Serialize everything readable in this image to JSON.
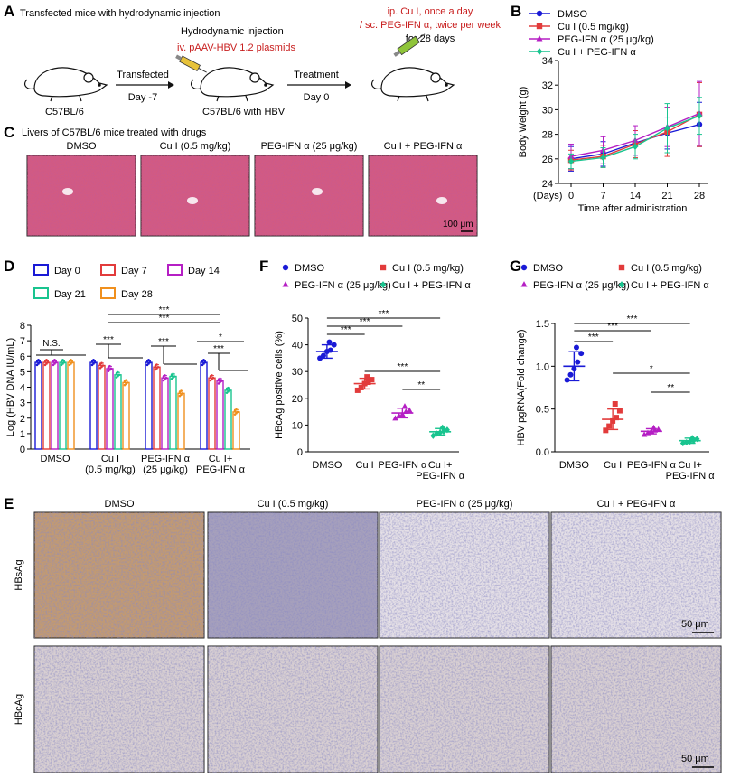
{
  "panels": {
    "A": {
      "letter": "A",
      "title": "Transfected mice with hydrodynamic injection",
      "hydro": "Hydrodynamic injection",
      "plasmid": "iv. pAAV-HBV 1.2 plasmids",
      "treat_line1": "ip. Cu I,  once a day",
      "treat_line2": "/ sc. PEG-IFN α, twice per week",
      "treat_line3": "for 28 days",
      "mouse1": "C57BL/6",
      "mouse2": "C57BL/6 with HBV",
      "arrow1_top": "Transfected",
      "arrow1_bottom": "Day -7",
      "arrow2_top": "Treatment",
      "arrow2_bottom": "Day 0"
    },
    "B": {
      "letter": "B"
    },
    "C": {
      "letter": "C",
      "title": "Livers of C57BL/6 mice treated with drugs",
      "labels": [
        "DMSO",
        "Cu I (0.5 mg/kg)",
        "PEG-IFN α (25 μg/kg)",
        "Cu I + PEG-IFN α"
      ],
      "scale": "100 μm"
    },
    "D": {
      "letter": "D"
    },
    "E": {
      "letter": "E",
      "labels": [
        "DMSO",
        "Cu I (0.5 mg/kg)",
        "PEG-IFN α (25 μg/kg)",
        "Cu I + PEG-IFN α"
      ],
      "rows": [
        "HBsAg",
        "HBcAg"
      ],
      "scale": "50 μm"
    },
    "F": {
      "letter": "F"
    },
    "G": {
      "letter": "G"
    }
  },
  "colors": {
    "dmso": "#1a1ad6",
    "cui": "#e23b3b",
    "peg": "#b51fc4",
    "combo": "#19c48f",
    "d0": "#1a1ad6",
    "d7": "#e23b3b",
    "d14": "#b51fc4",
    "d21": "#19c48f",
    "d28": "#f0901e",
    "he": "#d45a80",
    "ihc_brown": "#b7875a",
    "ihc_blue": "#cfcce0"
  },
  "chart_data": [
    {
      "id": "B",
      "type": "line",
      "ylabel": "Body Weight (g)",
      "xlabel": "Time after administration",
      "xunit": "(Days)",
      "x": [
        0,
        7,
        14,
        21,
        28
      ],
      "ylim": [
        24,
        34
      ],
      "yticks": [
        24,
        26,
        28,
        30,
        32,
        34
      ],
      "legend": "top-left",
      "series": [
        {
          "name": "DMSO",
          "color": "#1a1ad6",
          "marker": "circle",
          "values": [
            26.0,
            26.4,
            27.3,
            28.1,
            28.8
          ],
          "err": [
            1.0,
            1.0,
            1.0,
            1.3,
            1.8
          ]
        },
        {
          "name": "Cu I (0.5 mg/kg)",
          "color": "#e23b3b",
          "marker": "square",
          "values": [
            25.9,
            26.2,
            27.2,
            28.2,
            29.6
          ],
          "err": [
            0.8,
            0.9,
            1.1,
            2.0,
            2.6
          ]
        },
        {
          "name": "PEG-IFN α (25 μg/kg)",
          "color": "#b51fc4",
          "marker": "triangle",
          "values": [
            26.2,
            26.7,
            27.5,
            28.6,
            29.7
          ],
          "err": [
            1.0,
            1.1,
            1.2,
            1.6,
            2.6
          ]
        },
        {
          "name": "Cu I + PEG-IFN α",
          "color": "#19c48f",
          "marker": "diamond",
          "values": [
            25.8,
            26.1,
            27.0,
            28.5,
            29.5
          ],
          "err": [
            0.6,
            0.8,
            1.0,
            2.0,
            1.5
          ]
        }
      ]
    },
    {
      "id": "D",
      "type": "bar",
      "ylabel": "Log (HBV DNA IU/mL)",
      "ylim": [
        0,
        8
      ],
      "yticks": [
        0,
        1,
        2,
        3,
        4,
        5,
        6,
        7,
        8
      ],
      "categories": [
        "DMSO",
        "Cu I\n(0.5 mg/kg)",
        "PEG-IFN α\n(25 μg/kg)",
        "Cu I+\nPEG-IFN α"
      ],
      "series": [
        {
          "name": "Day 0",
          "color": "#1a1ad6",
          "values": [
            5.6,
            5.6,
            5.6,
            5.6
          ]
        },
        {
          "name": "Day 7",
          "color": "#e23b3b",
          "values": [
            5.6,
            5.4,
            5.3,
            4.6
          ]
        },
        {
          "name": "Day 14",
          "color": "#b51fc4",
          "values": [
            5.6,
            5.2,
            4.6,
            4.4
          ]
        },
        {
          "name": "Day 21",
          "color": "#19c48f",
          "values": [
            5.6,
            4.8,
            4.7,
            3.8
          ]
        },
        {
          "name": "Day 28",
          "color": "#f0901e",
          "values": [
            5.6,
            4.3,
            3.6,
            2.4
          ]
        }
      ],
      "annotations": [
        "N.S.",
        "***",
        "***",
        "***",
        "***",
        "*",
        "***",
        "***"
      ]
    },
    {
      "id": "F",
      "type": "scatter",
      "ylabel": "HBcAg positive cells (%)",
      "ylim": [
        0,
        50
      ],
      "yticks": [
        0,
        10,
        20,
        30,
        40,
        50
      ],
      "categories": [
        "DMSO",
        "Cu I",
        "PEG-IFN α",
        "Cu I+\nPEG-IFN α"
      ],
      "series": [
        {
          "name": "DMSO",
          "color": "#1a1ad6",
          "marker": "circle",
          "mean": 37.5,
          "sd": 2.5,
          "points": [
            35,
            36,
            37.5,
            38,
            40,
            41
          ]
        },
        {
          "name": "Cu I (0.5 mg/kg)",
          "color": "#e23b3b",
          "marker": "square",
          "mean": 25.5,
          "sd": 2.0,
          "points": [
            23,
            24,
            25.5,
            26,
            27,
            28
          ]
        },
        {
          "name": "PEG-IFN α (25 μg/kg)",
          "color": "#b51fc4",
          "marker": "triangle",
          "mean": 14.5,
          "sd": 1.8,
          "points": [
            12.5,
            13.5,
            14,
            15,
            15.5,
            17
          ]
        },
        {
          "name": "Cu I + PEG-IFN α",
          "color": "#19c48f",
          "marker": "diamond",
          "mean": 7.5,
          "sd": 1.2,
          "points": [
            6,
            6.8,
            7.2,
            7.6,
            8.2,
            9
          ]
        }
      ],
      "annotations": [
        "***",
        "***",
        "***",
        "***",
        "**"
      ]
    },
    {
      "id": "G",
      "type": "scatter",
      "ylabel": "HBV pgRNA(Fold change)",
      "ylim": [
        0,
        1.5
      ],
      "yticks": [
        0.0,
        0.5,
        1.0,
        1.5
      ],
      "categories": [
        "DMSO",
        "Cu I",
        "PEG-IFN α",
        "Cu I+\nPEG-IFN α"
      ],
      "series": [
        {
          "name": "DMSO",
          "color": "#1a1ad6",
          "marker": "circle",
          "mean": 1.0,
          "sd": 0.17,
          "points": [
            0.84,
            0.9,
            0.97,
            1.05,
            1.15,
            1.22
          ]
        },
        {
          "name": "Cu I (0.5 mg/kg)",
          "color": "#e23b3b",
          "marker": "square",
          "mean": 0.38,
          "sd": 0.12,
          "points": [
            0.25,
            0.3,
            0.36,
            0.4,
            0.48,
            0.56
          ]
        },
        {
          "name": "PEG-IFN α (25 μg/kg)",
          "color": "#b51fc4",
          "marker": "triangle",
          "mean": 0.24,
          "sd": 0.03,
          "points": [
            0.2,
            0.22,
            0.24,
            0.25,
            0.26,
            0.28
          ]
        },
        {
          "name": "Cu I + PEG-IFN α",
          "color": "#19c48f",
          "marker": "diamond",
          "mean": 0.13,
          "sd": 0.03,
          "points": [
            0.1,
            0.11,
            0.12,
            0.13,
            0.15,
            0.16
          ]
        }
      ],
      "annotations": [
        "***",
        "***",
        "***",
        "*",
        "**"
      ]
    }
  ]
}
